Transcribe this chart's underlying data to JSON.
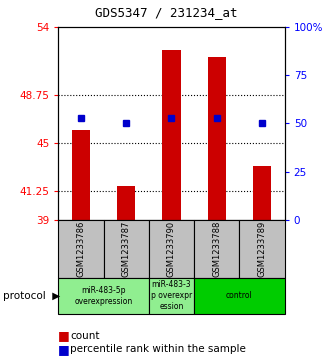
{
  "title": "GDS5347 / 231234_at",
  "samples": [
    "GSM1233786",
    "GSM1233787",
    "GSM1233790",
    "GSM1233788",
    "GSM1233789"
  ],
  "red_values": [
    46.0,
    41.6,
    52.2,
    51.7,
    43.2
  ],
  "blue_values_pct": [
    53,
    50,
    53,
    53,
    50
  ],
  "ymin": 39,
  "ymax": 54,
  "yticks": [
    39,
    41.25,
    45,
    48.75,
    54
  ],
  "ytick_labels": [
    "39",
    "41.25",
    "45",
    "48.75",
    "54"
  ],
  "right_yticks": [
    0,
    25,
    50,
    75,
    100
  ],
  "right_ytick_labels": [
    "0",
    "25",
    "50",
    "75",
    "100%"
  ],
  "gridlines": [
    41.25,
    45,
    48.75
  ],
  "bar_color": "#CC0000",
  "dot_color": "#0000CC",
  "bg_plot": "#FFFFFF",
  "bg_sample_label": "#C0C0C0",
  "bg_protocol_light": "#90EE90",
  "bg_protocol_dark": "#00CC00",
  "bar_bottom": 39,
  "proto_configs": [
    {
      "start": 0,
      "end": 1,
      "label": "miR-483-5p\noverexpression",
      "light": true
    },
    {
      "start": 2,
      "end": 2,
      "label": "miR-483-3\np overexpr\nession",
      "light": true
    },
    {
      "start": 3,
      "end": 4,
      "label": "control",
      "light": false
    }
  ]
}
